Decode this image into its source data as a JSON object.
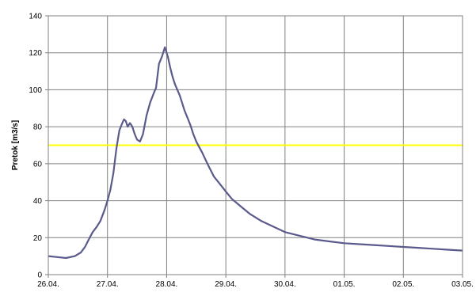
{
  "chart_data": {
    "type": "line",
    "title": "",
    "xlabel": "",
    "ylabel": "Pretok [m3/s]",
    "ylim": [
      0,
      140
    ],
    "yticks": [
      0,
      20,
      40,
      60,
      80,
      100,
      120,
      140
    ],
    "xlim": [
      0,
      7
    ],
    "x_tick_labels": [
      "26.04.",
      "27.04.",
      "28.04.",
      "29.04.",
      "30.04.",
      "01.05.",
      "02.05.",
      "03.05."
    ],
    "grid": true,
    "legend": "none",
    "colors": {
      "series": "#5a5a8c",
      "threshold": "#ffff00",
      "grid": "#808080",
      "frame": "#808080"
    },
    "threshold": 70,
    "series": [
      {
        "x": [
          0.0,
          0.15,
          0.3,
          0.45,
          0.55,
          0.62,
          0.7,
          0.75,
          0.82,
          0.88,
          0.95,
          1.0,
          1.05,
          1.1,
          1.15,
          1.2,
          1.25,
          1.28,
          1.31,
          1.34,
          1.38,
          1.42,
          1.46,
          1.5,
          1.55,
          1.6,
          1.66,
          1.72,
          1.78,
          1.82,
          1.87,
          1.92,
          1.97,
          2.02,
          2.06,
          2.1,
          2.14,
          2.18,
          2.22,
          2.26,
          2.3,
          2.35,
          2.4,
          2.45,
          2.5,
          2.55,
          2.6,
          2.66,
          2.72,
          2.8,
          2.9,
          3.0,
          3.1,
          3.25,
          3.4,
          3.6,
          3.8,
          4.0,
          4.25,
          4.5,
          4.75,
          5.0,
          5.25,
          5.5,
          5.75,
          6.0,
          6.25,
          6.5,
          6.75,
          7.0
        ],
        "y": [
          10,
          9.5,
          9,
          10,
          12,
          15,
          20,
          23,
          26,
          29,
          35,
          40,
          46,
          55,
          68,
          78,
          82,
          84,
          83,
          80,
          82,
          80,
          76,
          73,
          72,
          76,
          86,
          93,
          98,
          101,
          114,
          118,
          123,
          118,
          112,
          107,
          103,
          100,
          97,
          93,
          89,
          85,
          81,
          76,
          72,
          69,
          66,
          62,
          58,
          53,
          49,
          45,
          41,
          37,
          33,
          29,
          26,
          23,
          21,
          19,
          18,
          17,
          16.5,
          16,
          15.5,
          15,
          14.5,
          14,
          13.5,
          13
        ]
      }
    ]
  }
}
